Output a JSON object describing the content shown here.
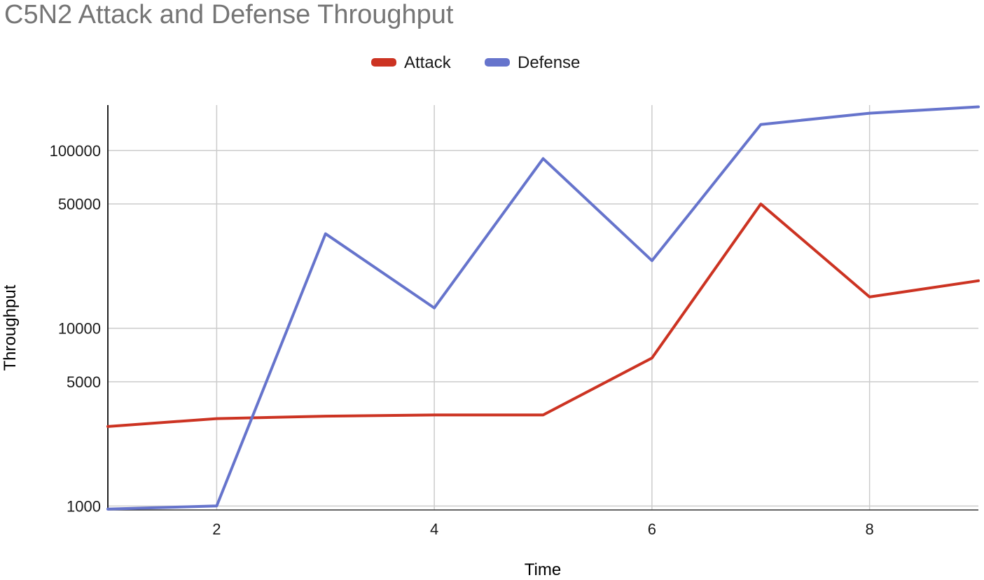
{
  "chart_data": {
    "type": "line",
    "title": "C5N2 Attack and Defense Throughput",
    "xlabel": "Time",
    "ylabel": "Throughput",
    "x": [
      1,
      2,
      3,
      4,
      5,
      6,
      7,
      8,
      9
    ],
    "x_ticks": [
      "2",
      "4",
      "6",
      "8"
    ],
    "y_ticks": [
      "1000",
      "5000",
      "10000",
      "50000",
      "100000"
    ],
    "xlim": [
      1,
      9
    ],
    "ylim": [
      950,
      180000
    ],
    "y_scale": "log",
    "grid": true,
    "legend_position": "top",
    "series": [
      {
        "name": "Attack",
        "color": "#cc3322",
        "values": [
          2800,
          3100,
          3200,
          3250,
          3250,
          6800,
          50000,
          15000,
          18500
        ]
      },
      {
        "name": "Defense",
        "color": "#6674cc",
        "values": [
          960,
          1000,
          34000,
          13000,
          90000,
          24000,
          140000,
          162000,
          176000
        ]
      }
    ]
  }
}
